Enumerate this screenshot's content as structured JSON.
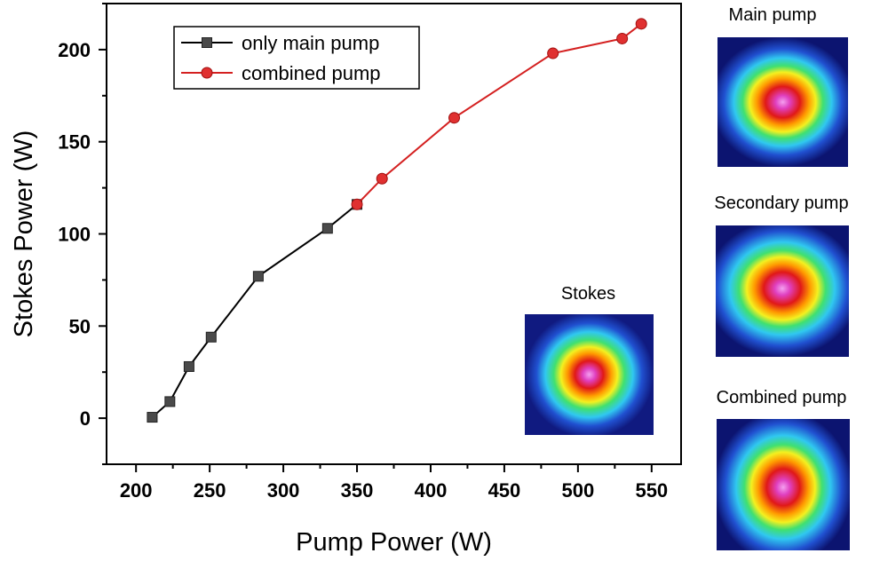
{
  "chart_data": {
    "type": "line",
    "xlabel": "Pump Power (W)",
    "ylabel": "Stokes Power (W)",
    "xlim": [
      180,
      570
    ],
    "ylim": [
      -25,
      225
    ],
    "xticks": [
      200,
      250,
      300,
      350,
      400,
      450,
      500,
      550
    ],
    "yticks": [
      0,
      50,
      100,
      150,
      200
    ],
    "grid": false,
    "legend": "top-left",
    "series": [
      {
        "name": "only main pump",
        "color": "#000000",
        "marker": "square",
        "marker_color": "#4a4a4a",
        "x": [
          211,
          223,
          236,
          251,
          283,
          330,
          350
        ],
        "y": [
          0.5,
          9,
          28,
          44,
          77,
          103,
          116
        ]
      },
      {
        "name": "combined pump",
        "color": "#d42020",
        "marker": "circle",
        "marker_color": "#e03030",
        "x": [
          350,
          367,
          416,
          483,
          530,
          543
        ],
        "y": [
          116,
          130,
          163,
          198,
          206,
          214
        ]
      }
    ]
  },
  "insets": {
    "stokes": "Stokes",
    "main": "Main pump",
    "secondary": "Secondary pump",
    "combined": "Combined pump"
  }
}
